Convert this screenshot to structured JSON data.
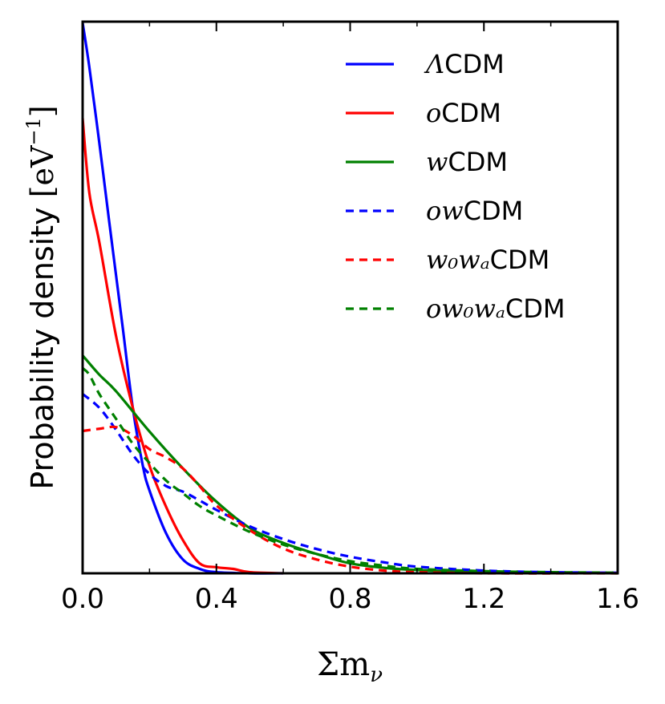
{
  "chart_data": {
    "type": "line",
    "title": "",
    "xlabel": "Σmν",
    "xlabel_parts": {
      "base": "Σm",
      "sub": "ν"
    },
    "ylabel": "Probability density [eV⁻¹]",
    "ylabel_parts": {
      "text": "Probability density ",
      "open": "[",
      "unit": "eV",
      "sup": "−1",
      "close": "]"
    },
    "xlim": [
      0.0,
      1.6
    ],
    "ylim": [
      0,
      1.0
    ],
    "xticks": [
      "0.0",
      "0.4",
      "0.8",
      "1.2",
      "1.6"
    ],
    "xtick_values": [
      0.0,
      0.4,
      0.8,
      1.2,
      1.6
    ],
    "minor_xtick_values": [
      0.2,
      0.6,
      1.0,
      1.4
    ],
    "yticks": [],
    "grid": false,
    "legend_position": "top-right",
    "series": [
      {
        "name": "ΛCDM",
        "label_math": "Λ",
        "label_text": "CDM",
        "color": "#0000ff",
        "style": "solid",
        "x": [
          0,
          0.02,
          0.05,
          0.08,
          0.1,
          0.12,
          0.15,
          0.18,
          0.2,
          0.25,
          0.3,
          0.35,
          0.4,
          0.5,
          0.6
        ],
        "y": [
          0.998,
          0.918,
          0.78,
          0.635,
          0.54,
          0.445,
          0.3,
          0.195,
          0.15,
          0.072,
          0.025,
          0.008,
          0.002,
          0,
          0
        ]
      },
      {
        "name": "oCDM",
        "label_math": "o",
        "label_text": "CDM",
        "color": "#ff0000",
        "style": "solid",
        "x": [
          0,
          0.02,
          0.05,
          0.1,
          0.15,
          0.2,
          0.25,
          0.3,
          0.35,
          0.4,
          0.45,
          0.5,
          0.6
        ],
        "y": [
          0.825,
          0.69,
          0.6,
          0.43,
          0.3,
          0.195,
          0.12,
          0.06,
          0.018,
          0.011,
          0.008,
          0.002,
          0
        ]
      },
      {
        "name": "wCDM",
        "label_math": "w",
        "label_text": "CDM",
        "color": "#008000",
        "style": "solid",
        "x": [
          0,
          0.05,
          0.1,
          0.2,
          0.3,
          0.4,
          0.5,
          0.6,
          0.7,
          0.8,
          0.9,
          1.0,
          1.2,
          1.6
        ],
        "y": [
          0.395,
          0.36,
          0.33,
          0.257,
          0.19,
          0.13,
          0.082,
          0.055,
          0.035,
          0.018,
          0.01,
          0.006,
          0.002,
          0
        ]
      },
      {
        "name": "owCDM",
        "label_math": "ow",
        "label_text": "CDM",
        "color": "#0000ff",
        "style": "dashed",
        "x": [
          0,
          0.05,
          0.1,
          0.15,
          0.2,
          0.25,
          0.3,
          0.35,
          0.4,
          0.5,
          0.6,
          0.7,
          0.8,
          0.9,
          1.0,
          1.2,
          1.4,
          1.6
        ],
        "y": [
          0.325,
          0.3,
          0.26,
          0.215,
          0.18,
          0.158,
          0.148,
          0.132,
          0.115,
          0.085,
          0.062,
          0.044,
          0.03,
          0.02,
          0.012,
          0.005,
          0.002,
          0.001
        ]
      },
      {
        "name": "w0waCDM",
        "label_math": "w₀wₐ",
        "label_text": "CDM",
        "color": "#ff0000",
        "style": "dashed",
        "x": [
          0,
          0.05,
          0.1,
          0.15,
          0.2,
          0.25,
          0.3,
          0.35,
          0.4,
          0.5,
          0.6,
          0.7,
          0.8,
          0.9,
          1.0,
          1.2,
          1.6
        ],
        "y": [
          0.258,
          0.262,
          0.265,
          0.25,
          0.225,
          0.21,
          0.19,
          0.158,
          0.123,
          0.078,
          0.045,
          0.025,
          0.012,
          0.005,
          0.002,
          0,
          0
        ]
      },
      {
        "name": "ow0waCDM",
        "label_math": "ow₀wₐ",
        "label_text": "CDM",
        "color": "#008000",
        "style": "dashed",
        "x": [
          0,
          0.02,
          0.05,
          0.1,
          0.15,
          0.2,
          0.25,
          0.3,
          0.35,
          0.4,
          0.5,
          0.6,
          0.7,
          0.8,
          0.9,
          1.0,
          1.2,
          1.4,
          1.6
        ],
        "y": [
          0.372,
          0.36,
          0.325,
          0.28,
          0.235,
          0.2,
          0.168,
          0.145,
          0.122,
          0.105,
          0.075,
          0.052,
          0.035,
          0.022,
          0.014,
          0.008,
          0.004,
          0.002,
          0.001
        ]
      }
    ]
  }
}
